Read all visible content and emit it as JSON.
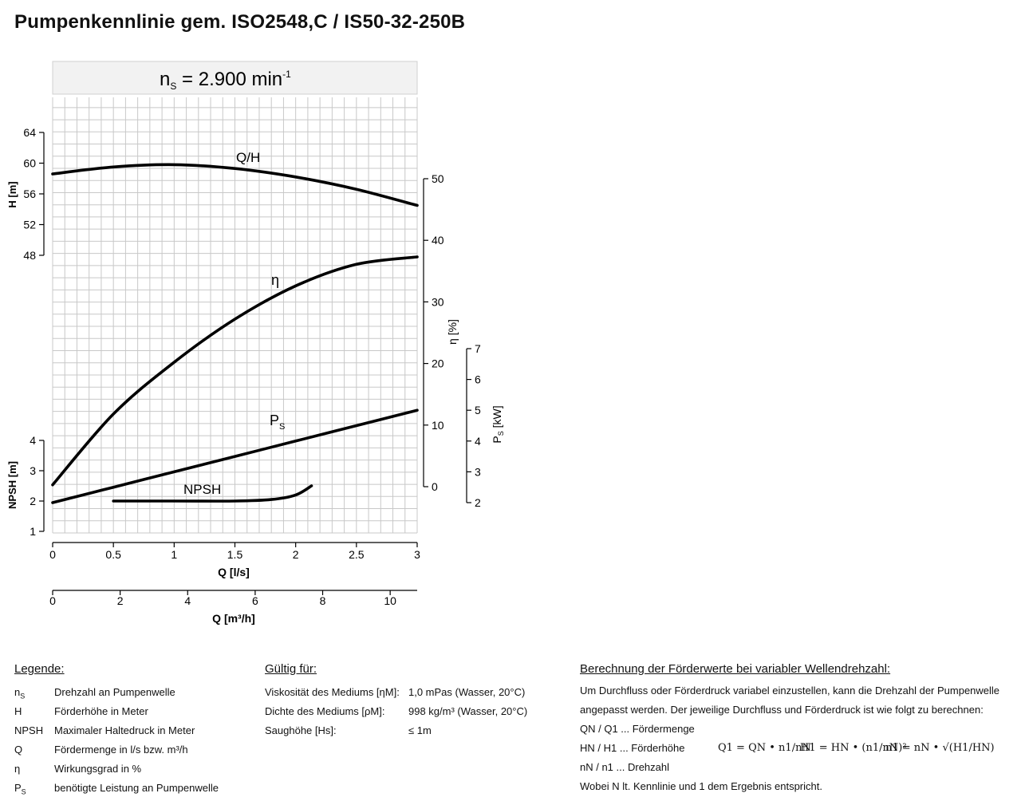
{
  "title": "Pumpenkennlinie gem. ISO2548,C / IS50-32-250B",
  "chart_data": {
    "type": "line",
    "speed_label": "n",
    "speed_label_sub": "S",
    "speed_value": " = 2.900 min",
    "speed_exp": "-1",
    "x_axis": {
      "label": "Q [l/s]",
      "ticks": [
        "0",
        "0.5",
        "1",
        "1.5",
        "2",
        "2.5",
        "3"
      ],
      "range": [
        0,
        3
      ]
    },
    "x2_axis": {
      "label": "Q [m³/h]",
      "ticks": [
        "0",
        "2",
        "4",
        "6",
        "8",
        "10"
      ],
      "range": [
        0,
        10.8
      ]
    },
    "axes": {
      "H": {
        "label": "H [m]",
        "ticks": [
          "48",
          "52",
          "56",
          "60",
          "64"
        ],
        "range": [
          48,
          64
        ]
      },
      "NPSH": {
        "label": "NPSH [m]",
        "ticks": [
          "1",
          "2",
          "3",
          "4"
        ],
        "range": [
          1,
          4
        ]
      },
      "eta": {
        "label": "η [%]",
        "ticks": [
          "0",
          "10",
          "20",
          "30",
          "40",
          "50"
        ],
        "range": [
          0,
          50
        ]
      },
      "Ps": {
        "label": "P",
        "label_sub": "S",
        "label_unit": " [kW]",
        "ticks": [
          "2",
          "3",
          "4",
          "5",
          "6",
          "7"
        ],
        "range": [
          2,
          7
        ]
      }
    },
    "series": [
      {
        "name": "Q/H",
        "axis": "H",
        "x": [
          0,
          0.5,
          1,
          1.5,
          2,
          2.5,
          3
        ],
        "values": [
          58.6,
          59.5,
          59.8,
          59.3,
          58.2,
          56.6,
          54.5
        ]
      },
      {
        "name": "η",
        "axis": "eta",
        "x": [
          0,
          0.5,
          1,
          1.5,
          2,
          2.5,
          3
        ],
        "values": [
          0.3,
          11.8,
          20.2,
          27.2,
          32.6,
          36.1,
          37.3
        ]
      },
      {
        "name": "P",
        "name_sub": "S",
        "axis": "Ps",
        "x": [
          0,
          0.5,
          1,
          1.5,
          2,
          2.5,
          3
        ],
        "values": [
          2.0,
          2.5,
          3.0,
          3.5,
          4.0,
          4.5,
          5.0
        ]
      },
      {
        "name": "NPSH",
        "axis": "NPSH",
        "x": [
          0.5,
          1.0,
          1.5,
          1.8,
          2.0,
          2.13
        ],
        "values": [
          2.0,
          2.0,
          2.0,
          2.05,
          2.2,
          2.5
        ]
      }
    ],
    "grid": true
  },
  "legend": {
    "heading": "Legende:",
    "items": [
      {
        "sym": "n",
        "sub": "S",
        "text": "Drehzahl an Pumpenwelle"
      },
      {
        "sym": "H",
        "sub": "",
        "text": "Förderhöhe in Meter"
      },
      {
        "sym": "NPSH",
        "sub": "",
        "text": "Maximaler Haltedruck in Meter"
      },
      {
        "sym": "Q",
        "sub": "",
        "text": "Fördermenge in l/s bzw. m³/h"
      },
      {
        "sym": "η",
        "sub": "",
        "text": "Wirkungsgrad in %"
      },
      {
        "sym": "P",
        "sub": "S",
        "text": "benötigte Leistung an Pumpenwelle"
      }
    ]
  },
  "valid": {
    "heading": "Gültig für:",
    "rows": [
      {
        "label": "Viskosität des Mediums [ηM]:",
        "value": "1,0 mPas (Wasser, 20°C)"
      },
      {
        "label": "Dichte des Mediums [ρM]:",
        "value": "998 kg/m³ (Wasser, 20°C)"
      },
      {
        "label": "Saughöhe [Hs]:",
        "value": "≤ 1m"
      }
    ]
  },
  "calc": {
    "heading": "Berechnung der Förderwerte bei variabler Wellendrehzahl:",
    "line1": "Um Durchfluss oder Förderdruck variabel einzustellen, kann die Drehzahl der Pumpenwelle",
    "line2": "angepasst werden. Der jeweilige Durchfluss und Förderdruck ist wie folgt zu berechnen:",
    "line3": "QN / Q1 ... Fördermenge",
    "line4": "HN / H1 ... Förderhöhe",
    "line5": "nN / n1 ... Drehzahl",
    "line6": "Wobei N lt. Kennlinie und 1 dem Ergebnis entspricht.",
    "f1": "Q1 = QN • n1/nN",
    "f2": "H1 = HN • (n1/nN)²",
    "f3": "n1 = nN • √(H1/HN)"
  }
}
